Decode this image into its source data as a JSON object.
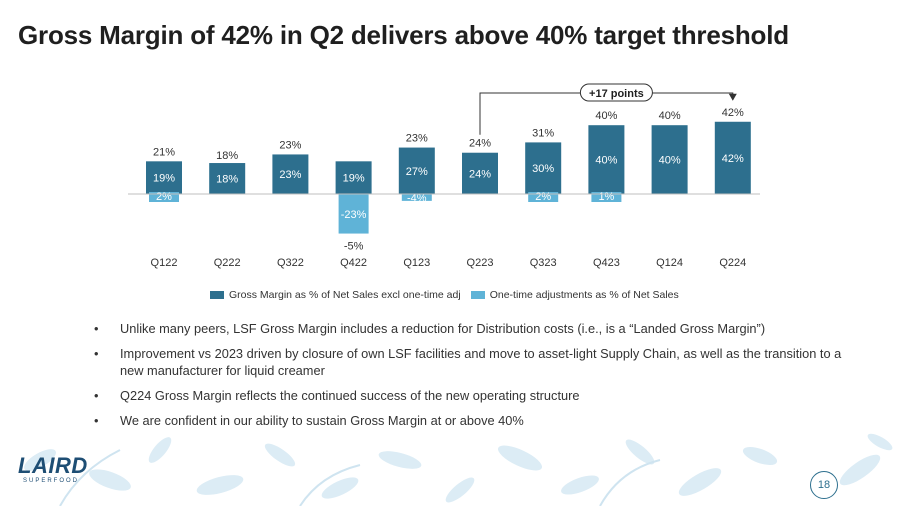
{
  "title": "Gross Margin of 42% in Q2 delivers above 40% target threshold",
  "chart_data": {
    "type": "bar",
    "categories": [
      "Q122",
      "Q222",
      "Q322",
      "Q422",
      "Q123",
      "Q223",
      "Q323",
      "Q423",
      "Q124",
      "Q224"
    ],
    "series": [
      {
        "name": "Gross Margin as % of Net Sales excl one-time adj",
        "color": "#2d6f8e",
        "values": [
          19,
          18,
          23,
          19,
          27,
          24,
          30,
          40,
          40,
          42
        ],
        "labels": [
          "19%",
          "18%",
          "23%",
          "19%",
          "27%",
          "24%",
          "30%",
          "40%",
          "40%",
          "42%"
        ]
      },
      {
        "name": "One-time adjustments as % of Net Sales",
        "color": "#5fb3d7",
        "values": [
          2,
          0,
          0,
          -23,
          -4,
          0,
          2,
          1,
          0,
          0
        ],
        "labels": [
          "2%",
          null,
          null,
          "-23%",
          "-4%",
          null,
          "2%",
          "1%",
          null,
          null
        ]
      }
    ],
    "totals": [
      "21%",
      "18%",
      "23%",
      "-5%",
      "23%",
      "24%",
      "31%",
      "40%",
      "40%",
      "42%"
    ],
    "annotation": {
      "text": "+17 points",
      "from": "Q223",
      "to": "Q224"
    },
    "ylabel": "",
    "xlabel": "",
    "ylim": [
      -25,
      45
    ],
    "legend_position": "bottom-center"
  },
  "bullets": [
    "Unlike many peers, LSF Gross Margin includes a reduction for Distribution costs (i.e., is a “Landed Gross Margin”)",
    "Improvement vs 2023 driven by closure of own LSF facilities and move to asset-light Supply Chain, as well as the transition to a new manufacturer for liquid creamer",
    "Q224 Gross Margin reflects the continued success of the new operating structure",
    "We are confident in our ability to sustain Gross Margin at or above 40%"
  ],
  "logo": {
    "main": "LAIRD",
    "sub": "SUPERFOOD"
  },
  "page_number": "18"
}
